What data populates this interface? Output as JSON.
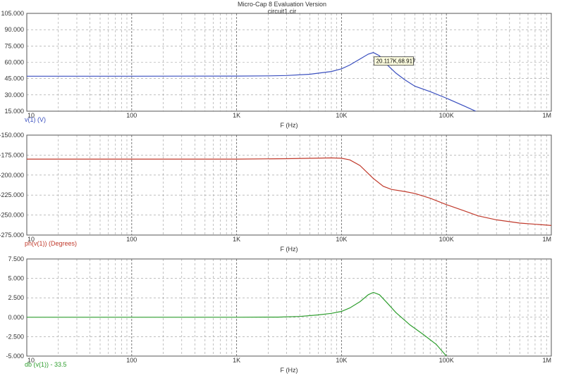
{
  "window": {
    "title": "Micro-Cap 8 Evaluation Version",
    "subtitle": "circuit1.cir"
  },
  "cursor_label": "20.117K,68.917",
  "chart_data": [
    {
      "type": "line",
      "xscale": "log",
      "xlim": [
        10,
        1000000
      ],
      "xticks": [
        "10",
        "100",
        "1K",
        "10K",
        "100K",
        "1M"
      ],
      "xlabel": "F (Hz)",
      "ylabel": "v(1) (V)",
      "ylim": [
        15,
        105
      ],
      "yticks": [
        "105.000",
        "90.000",
        "75.000",
        "60.000",
        "45.000",
        "30.000",
        "15.000"
      ],
      "grid": true,
      "color": "#3a4fbf",
      "x": [
        10,
        100,
        1000,
        2000,
        3000,
        5000,
        8000,
        10000,
        12000,
        15000,
        18000,
        20117,
        23000,
        27000,
        33000,
        40000,
        50000,
        70000,
        100000,
        150000,
        200000
      ],
      "values": [
        47.2,
        47.2,
        47.3,
        47.5,
        47.8,
        49.0,
        51.5,
        54.0,
        57.5,
        63.0,
        67.5,
        68.917,
        66.0,
        58.0,
        50.0,
        44.0,
        38.0,
        33.0,
        27.0,
        19.5,
        14.0
      ]
    },
    {
      "type": "line",
      "xscale": "log",
      "xlim": [
        10,
        1000000
      ],
      "xticks": [
        "10",
        "100",
        "1K",
        "10K",
        "100K",
        "1M"
      ],
      "xlabel": "F (Hz)",
      "ylabel": "ph(v(1)) (Degrees)",
      "ylim": [
        -275,
        -150
      ],
      "yticks": [
        "-150.000",
        "-175.000",
        "-200.000",
        "-225.000",
        "-250.000",
        "-275.000"
      ],
      "grid": true,
      "color": "#c0392b",
      "x": [
        10,
        100,
        1000,
        3000,
        8000,
        10000,
        12000,
        15000,
        20000,
        25000,
        30000,
        40000,
        50000,
        70000,
        100000,
        150000,
        200000,
        300000,
        500000,
        1000000
      ],
      "values": [
        -180.0,
        -180.0,
        -180.0,
        -179.5,
        -178.5,
        -179.0,
        -181.0,
        -188.0,
        -204.0,
        -214.0,
        -218.0,
        -220.5,
        -223.0,
        -229.0,
        -237.0,
        -245.0,
        -251.0,
        -256.0,
        -260.0,
        -263.0
      ]
    },
    {
      "type": "line",
      "xscale": "log",
      "xlim": [
        10,
        1000000
      ],
      "xticks": [
        "10",
        "100",
        "1K",
        "10K",
        "100K",
        "1M"
      ],
      "xlabel": "F (Hz)",
      "ylabel": "db (v(1)) - 33.5",
      "ylim": [
        -5,
        7.5
      ],
      "yticks": [
        "7.500",
        "5.000",
        "2.500",
        "0.000",
        "-2.500",
        "-5.000"
      ],
      "grid": true,
      "color": "#2e9e2e",
      "x": [
        10,
        100,
        1000,
        2500,
        4000,
        6000,
        8000,
        10000,
        12000,
        15000,
        18000,
        20117,
        23000,
        27000,
        33000,
        45000,
        60000,
        80000,
        100000
      ],
      "values": [
        0.0,
        0.0,
        0.0,
        0.02,
        0.1,
        0.3,
        0.5,
        0.75,
        1.2,
        2.0,
        2.9,
        3.2,
        2.9,
        1.9,
        0.6,
        -1.0,
        -2.2,
        -3.5,
        -5.0
      ]
    }
  ]
}
